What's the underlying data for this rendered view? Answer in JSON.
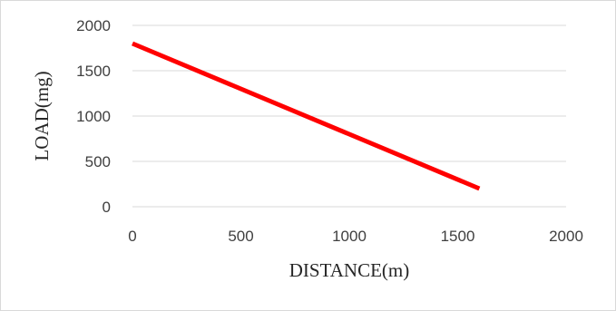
{
  "chart_data": {
    "type": "line",
    "title": "",
    "xlabel": "DISTANCE(m)",
    "ylabel": "LOAD(mg)",
    "xlim": [
      0,
      2000
    ],
    "ylim": [
      0,
      2000
    ],
    "xticks": [
      0,
      500,
      1000,
      1500,
      2000
    ],
    "yticks": [
      0,
      500,
      1000,
      1500,
      2000
    ],
    "grid": "horizontal",
    "legend": "none",
    "series": [
      {
        "color": "#ff0000",
        "x": [
          0,
          1600
        ],
        "y": [
          1800,
          200
        ]
      }
    ]
  }
}
